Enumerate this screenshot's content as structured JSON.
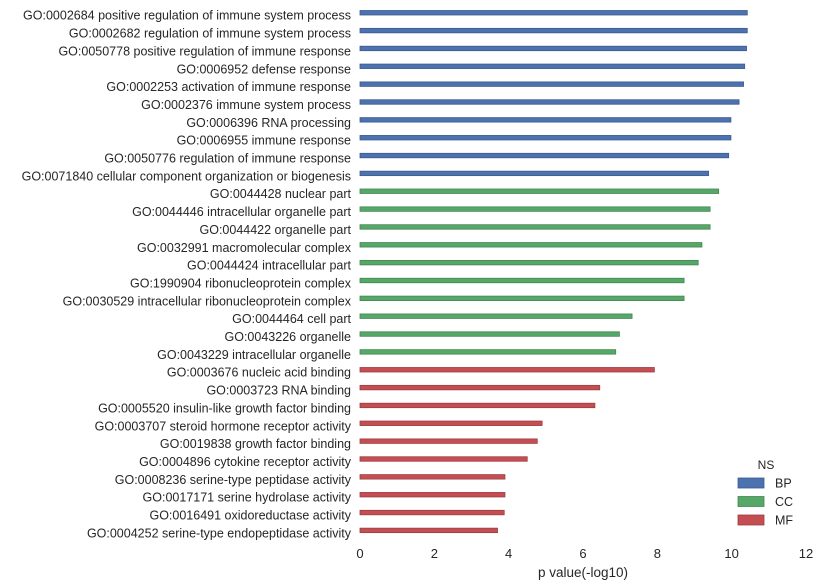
{
  "colors": {
    "BP": "#4c72b0",
    "CC": "#55a868",
    "MF": "#c44e52"
  },
  "chart_data": {
    "type": "bar",
    "orientation": "horizontal",
    "xlabel": "p value(-log10)",
    "xlim": [
      0,
      12
    ],
    "xticks": [
      0,
      2,
      4,
      6,
      8,
      10,
      12
    ],
    "grid": false,
    "legend": {
      "title": "NS",
      "placement": "bottom-right",
      "entries": [
        "BP",
        "CC",
        "MF"
      ]
    },
    "categories": [
      "GO:0002684 positive regulation of immune system process",
      "GO:0002682 regulation of immune system process",
      "GO:0050778 positive regulation of immune response",
      "GO:0006952 defense response",
      "GO:0002253 activation of immune response",
      "GO:0002376 immune system process",
      "GO:0006396 RNA processing",
      "GO:0006955 immune response",
      "GO:0050776 regulation of immune response",
      "GO:0071840 cellular component organization or biogenesis",
      "GO:0044428 nuclear part",
      "GO:0044446 intracellular organelle part",
      "GO:0044422 organelle part",
      "GO:0032991 macromolecular complex",
      "GO:0044424 intracellular part",
      "GO:1990904 ribonucleoprotein complex",
      "GO:0030529 intracellular ribonucleoprotein complex",
      "GO:0044464 cell part",
      "GO:0043226 organelle",
      "GO:0043229 intracellular organelle",
      "GO:0003676 nucleic acid binding",
      "GO:0003723 RNA binding",
      "GO:0005520 insulin-like growth factor binding",
      "GO:0003707 steroid hormone receptor activity",
      "GO:0019838 growth factor binding",
      "GO:0004896 cytokine receptor activity",
      "GO:0008236 serine-type peptidase activity",
      "GO:0017171 serine hydrolase activity",
      "GO:0016491 oxidoreductase activity",
      "GO:0004252 serine-type endopeptidase activity"
    ],
    "values": [
      10.42,
      10.42,
      10.4,
      10.35,
      10.32,
      10.2,
      9.98,
      9.98,
      9.92,
      9.38,
      9.65,
      9.42,
      9.42,
      9.2,
      9.1,
      8.72,
      8.72,
      7.32,
      6.98,
      6.88,
      7.92,
      6.45,
      6.32,
      4.9,
      4.77,
      4.5,
      3.9,
      3.9,
      3.88,
      3.7
    ],
    "ns": [
      "BP",
      "BP",
      "BP",
      "BP",
      "BP",
      "BP",
      "BP",
      "BP",
      "BP",
      "BP",
      "CC",
      "CC",
      "CC",
      "CC",
      "CC",
      "CC",
      "CC",
      "CC",
      "CC",
      "CC",
      "MF",
      "MF",
      "MF",
      "MF",
      "MF",
      "MF",
      "MF",
      "MF",
      "MF",
      "MF"
    ]
  }
}
